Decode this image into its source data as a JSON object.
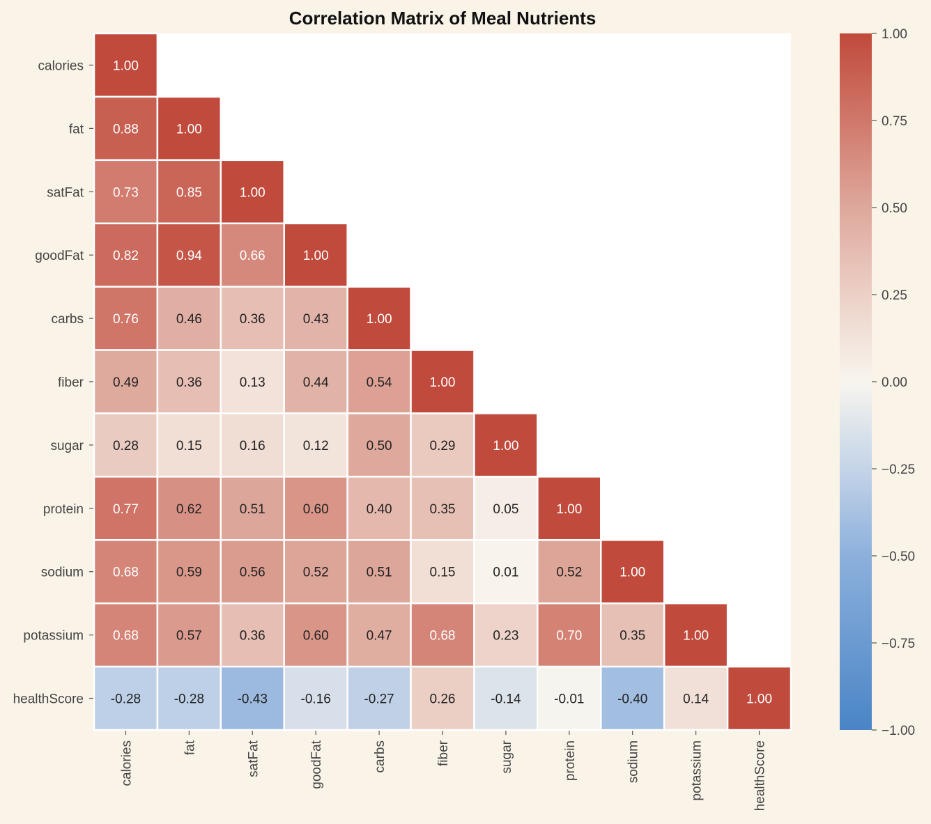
{
  "chart_data": {
    "type": "heatmap",
    "title": "Correlation Matrix of Meal Nutrients",
    "variables": [
      "calories",
      "fat",
      "satFat",
      "goodFat",
      "carbs",
      "fiber",
      "sugar",
      "protein",
      "sodium",
      "potassium",
      "healthScore"
    ],
    "mask": "upper-triangle",
    "matrix": [
      [
        1.0
      ],
      [
        0.88,
        1.0
      ],
      [
        0.73,
        0.85,
        1.0
      ],
      [
        0.82,
        0.94,
        0.66,
        1.0
      ],
      [
        0.76,
        0.46,
        0.36,
        0.43,
        1.0
      ],
      [
        0.49,
        0.36,
        0.13,
        0.44,
        0.54,
        1.0
      ],
      [
        0.28,
        0.15,
        0.16,
        0.12,
        0.5,
        0.29,
        1.0
      ],
      [
        0.77,
        0.62,
        0.51,
        0.6,
        0.4,
        0.35,
        0.05,
        1.0
      ],
      [
        0.68,
        0.59,
        0.56,
        0.52,
        0.51,
        0.15,
        0.01,
        0.52,
        1.0
      ],
      [
        0.68,
        0.57,
        0.36,
        0.6,
        0.47,
        0.68,
        0.23,
        0.7,
        0.35,
        1.0
      ],
      [
        -0.28,
        -0.28,
        -0.43,
        -0.16,
        -0.27,
        0.26,
        -0.14,
        -0.01,
        -0.4,
        0.14,
        1.0
      ]
    ],
    "value_format": "0.00",
    "colorbar": {
      "range": [
        -1.0,
        1.0
      ],
      "ticks": [
        1.0,
        0.75,
        0.5,
        0.25,
        0.0,
        -0.25,
        -0.5,
        -0.75,
        -1.0
      ],
      "tick_labels": [
        "1.00",
        "0.75",
        "0.50",
        "0.25",
        "0.00",
        "−0.25",
        "−0.50",
        "−0.75",
        "−1.00"
      ],
      "colormap": "diverging blue-white-red",
      "low_color": "#4a85c6",
      "mid_color": "#f8f5ee",
      "high_color": "#c04a3c"
    },
    "colors": {
      "background": "#faf3e8",
      "plot_area": "#ffffff",
      "dark_text": "#222222",
      "light_text": "#ffffff"
    }
  }
}
